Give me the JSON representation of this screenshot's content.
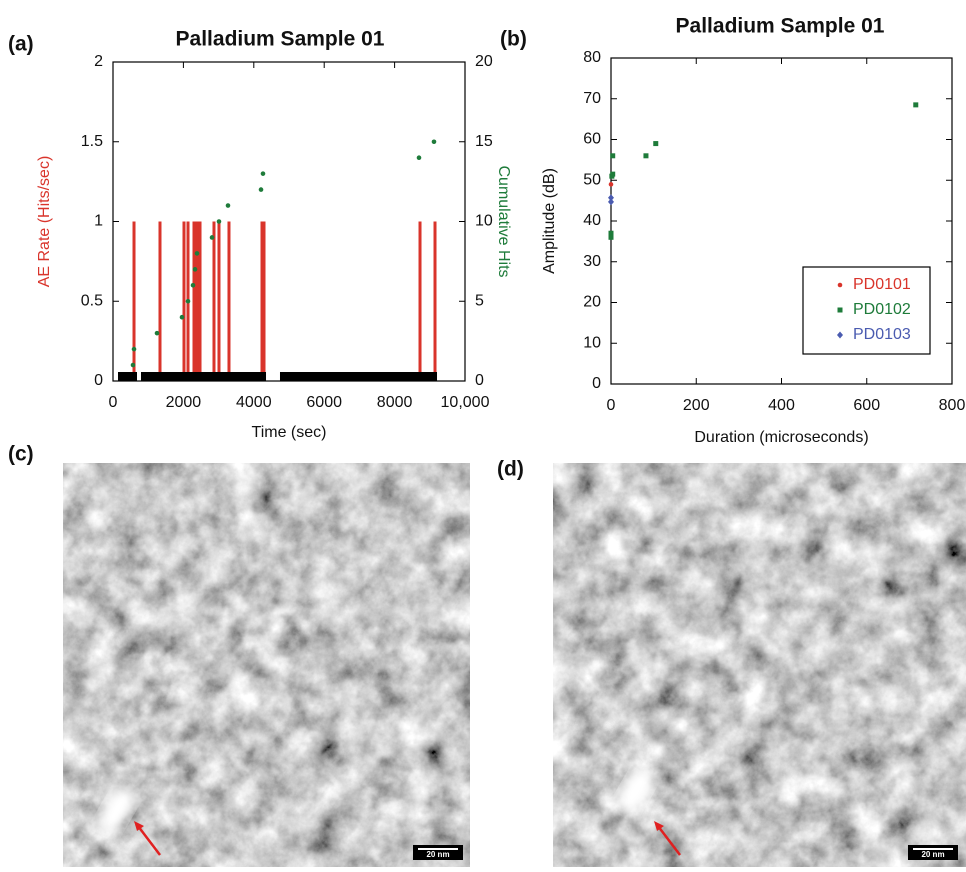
{
  "chart_data": [
    {
      "type": "bar",
      "label": "(a)",
      "title": "Palladium Sample 01",
      "xlabel": "Time (sec)",
      "ylabel": "AE Rate (Hits/sec)",
      "y2label": "Cumulative Hits",
      "xlim": [
        0,
        10000
      ],
      "xticks": [
        0,
        2000,
        4000,
        6000,
        8000,
        {
          "value": 10000,
          "label": "10,000"
        }
      ],
      "ylim": [
        0,
        2
      ],
      "yticks": [
        0,
        0.5,
        1,
        1.5,
        2
      ],
      "y2lim": [
        0,
        20
      ],
      "y2ticks": [
        0,
        5,
        10,
        15,
        20
      ],
      "series": [
        {
          "type": "bar",
          "color": "#d9342b",
          "x": [
            597,
            1335,
            2017,
            2131,
            2301,
            2358,
            2415,
            2472,
            2869,
            3011,
            3295,
            4233,
            4290,
            8722,
            9148
          ],
          "values": [
            1,
            1,
            1,
            1,
            1,
            1,
            1,
            1,
            1,
            1,
            1,
            1,
            1,
            1,
            1
          ]
        },
        {
          "type": "scatter",
          "axis": "y2",
          "color": "#1e7b3a",
          "x": [
            568,
            597,
            1250,
            1960,
            2131,
            2273,
            2330,
            2386,
            2813,
            3011,
            3267,
            4205,
            4261,
            8693,
            9119
          ],
          "values": [
            1,
            2,
            3,
            4,
            5,
            6,
            7,
            8,
            9,
            10,
            11,
            12,
            13,
            14,
            15
          ]
        },
        {
          "type": "span",
          "color": "#000000",
          "spans": [
            [
              142,
              682
            ],
            [
              795,
              4347
            ],
            [
              4744,
              9205
            ]
          ]
        }
      ]
    },
    {
      "type": "scatter",
      "label": "(b)",
      "title": "Palladium Sample 01",
      "xlabel": "Duration (microseconds)",
      "ylabel": "Amplitude (dB)",
      "xlim": [
        0,
        800
      ],
      "xticks": [
        0,
        200,
        400,
        600,
        800
      ],
      "ylim": [
        0,
        80
      ],
      "yticks": [
        0,
        10,
        20,
        30,
        40,
        50,
        60,
        70,
        80
      ],
      "legend": "lower right",
      "series": [
        {
          "name": "PD0101",
          "color": "#d9342b",
          "marker": "circle",
          "x": [
            0
          ],
          "values": [
            49
          ]
        },
        {
          "name": "PD0102",
          "color": "#1e7b3a",
          "marker": "square",
          "x": [
            0,
            0,
            2,
            4,
            4,
            82,
            105,
            715
          ],
          "values": [
            37,
            36,
            51,
            51.5,
            56,
            56,
            59,
            68.5
          ]
        },
        {
          "name": "PD0103",
          "color": "#4a5bb0",
          "marker": "diamond",
          "x": [
            0,
            0
          ],
          "values": [
            45.7,
            44.7
          ]
        }
      ]
    }
  ],
  "images": [
    {
      "label": "(c)",
      "scale_bar": "20 nm"
    },
    {
      "label": "(d)",
      "scale_bar": "20 nm"
    }
  ]
}
